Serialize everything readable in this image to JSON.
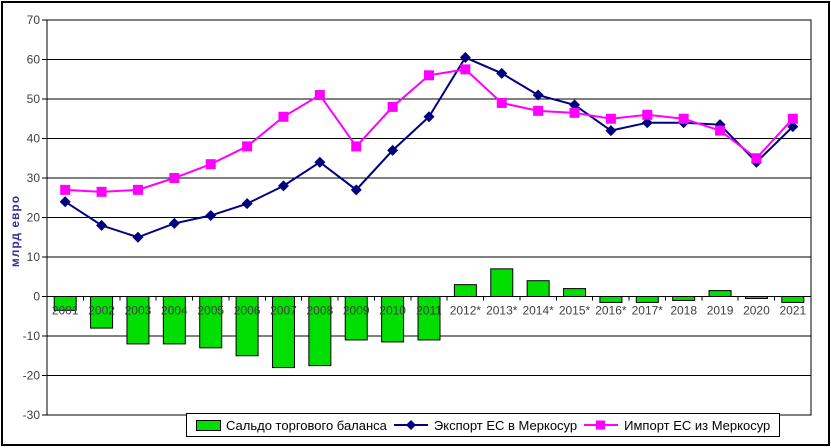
{
  "page": {
    "background": "#FFFFFF",
    "border_color": "#000000"
  },
  "chart_data": {
    "type": "combo",
    "title": "",
    "ylabel": "млрд евро",
    "ylabel_color": "#333399",
    "axis_text_color": "#404040",
    "grid": true,
    "legend_position": "bottom",
    "ylim": [
      -30,
      70
    ],
    "ytick_step": 10,
    "categories": [
      "2001",
      "2002",
      "2003",
      "2004",
      "2005",
      "2006",
      "2007",
      "2008",
      "2009",
      "2010",
      "2011",
      "2012*",
      "2013*",
      "2014*",
      "2015*",
      "2016*",
      "2017*",
      "2018",
      "2019",
      "2020",
      "2021"
    ],
    "series": [
      {
        "name": "Сальдо торгового баланса",
        "type": "bar",
        "color": "#00DF00",
        "values": [
          -3.5,
          -8,
          -12,
          -12,
          -13,
          -15,
          -18,
          -17.5,
          -11,
          -11.5,
          -11,
          3,
          7,
          4,
          2,
          -1.5,
          -1.5,
          -1,
          1.5,
          -0.5,
          -1.5
        ]
      },
      {
        "name": "Экспорт ЕС в Меркосур",
        "type": "line",
        "marker": "diamond",
        "color": "#000080",
        "values": [
          24,
          18,
          15,
          18.5,
          20.5,
          23.5,
          28,
          34,
          27,
          37,
          45.5,
          60.5,
          56.5,
          51,
          48.5,
          42,
          44,
          44,
          43.5,
          34,
          43
        ]
      },
      {
        "name": "Импорт ЕС из Меркосур",
        "type": "line",
        "marker": "square",
        "color": "#FF00FF",
        "values": [
          27,
          26.5,
          27,
          30,
          33.5,
          38,
          45.5,
          51,
          38,
          48,
          56,
          57.5,
          49,
          47,
          46.5,
          45,
          46,
          45,
          42,
          35,
          45
        ]
      }
    ]
  }
}
